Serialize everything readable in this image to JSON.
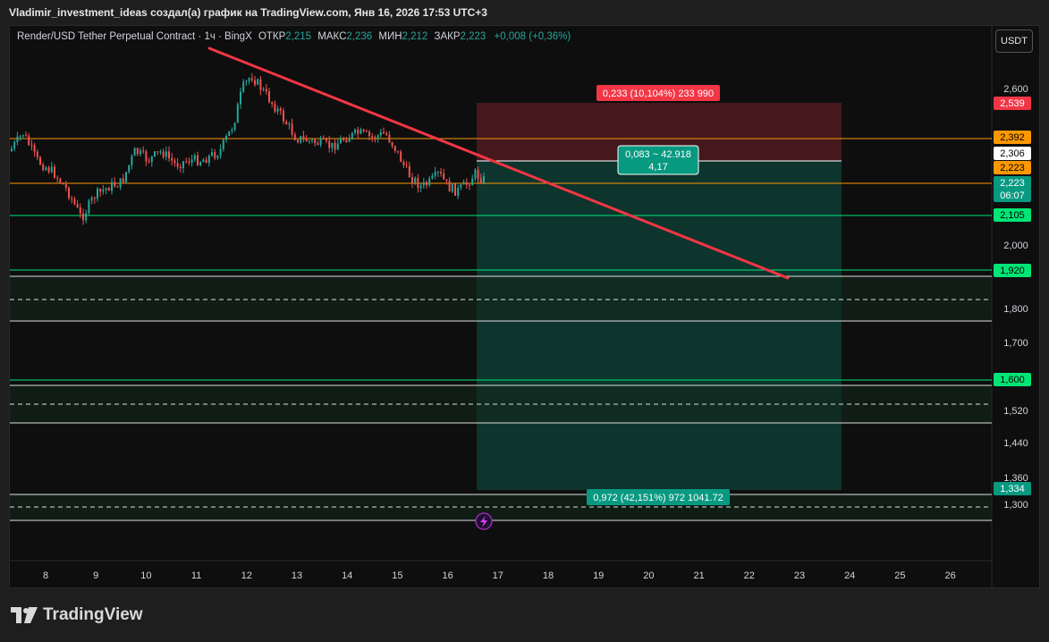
{
  "header": {
    "title": "Vladimir_investment_ideas создал(а) график на TradingView.com, Янв 16, 2026 17:53 UTC+3"
  },
  "legend": {
    "symbol": "Render/USD Tether Perpetual Contract · 1ч · BingX",
    "open_label": "ОТКР",
    "open": "2,215",
    "high_label": "МАКС",
    "high": "2,236",
    "low_label": "МИН",
    "low": "2,212",
    "close_label": "ЗАКР",
    "close": "2,223",
    "change": "+0,008 (+0,36%)"
  },
  "currency_button": "USDT",
  "price_axis": [
    "2,600",
    "2,000",
    "1,800",
    "1,700",
    "1,520",
    "1,440",
    "1,360",
    "1,300"
  ],
  "price_badges": [
    {
      "text": "2,539",
      "bg": "#f23645",
      "fg": "#ffffff"
    },
    {
      "text": "2,392",
      "bg": "#ff9800",
      "fg": "#000000"
    },
    {
      "text": "2,306",
      "bg": "#ffffff",
      "fg": "#000000"
    },
    {
      "text": "2,223",
      "bg": "#ff9800",
      "fg": "#000000"
    },
    {
      "text": "2,223",
      "bg": "#089981",
      "fg": "#ffffff"
    },
    {
      "text": "06:07",
      "bg": "#089981",
      "fg": "#ffffff"
    },
    {
      "text": "2,105",
      "bg": "#00e676",
      "fg": "#000000"
    },
    {
      "text": "1,920",
      "bg": "#00e676",
      "fg": "#000000"
    },
    {
      "text": "1,600",
      "bg": "#00e676",
      "fg": "#000000"
    },
    {
      "text": "1,334",
      "bg": "#089981",
      "fg": "#ffffff"
    }
  ],
  "time_axis": [
    "8",
    "9",
    "10",
    "11",
    "12",
    "13",
    "14",
    "15",
    "16",
    "17",
    "18",
    "19",
    "20",
    "21",
    "22",
    "23",
    "24",
    "25",
    "26"
  ],
  "labels": {
    "stop": "0,233 (10,104%) 233 990",
    "entry_line1": "0,083 ~ 42.918",
    "entry_line2": "4,17",
    "target": "0,972 (42,151%) 972 1041.72"
  },
  "event_icon": "lightning-icon",
  "logo_text": "TradingView",
  "colors": {
    "up": "#26a69a",
    "down": "#ef5350",
    "trendline": "#f23645",
    "orange": "#ff9800",
    "green_line": "#00e676",
    "profit_zone": "#0d3b33",
    "loss_zone": "#4a1a1f"
  }
}
